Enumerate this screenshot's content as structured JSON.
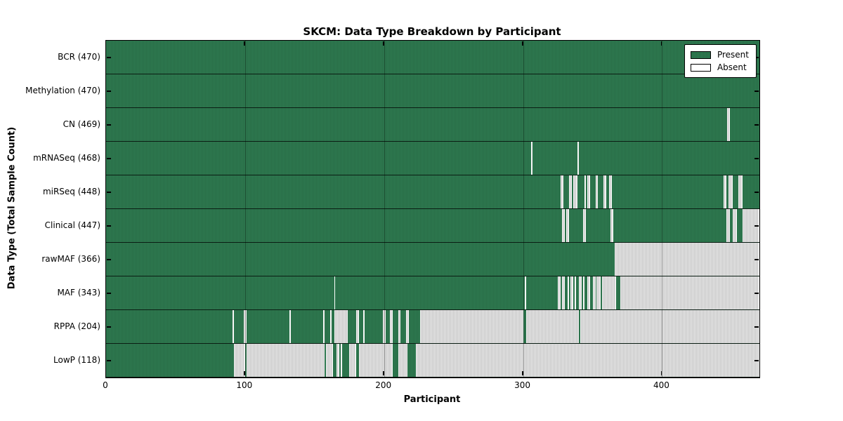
{
  "title": "SKCM: Data Type Breakdown by Participant",
  "colors": {
    "present": "#2f7b51",
    "present_dark": "#215c3c",
    "absent": "#ebebeb",
    "absent_dark": "#c3c3c3"
  },
  "legend": {
    "items": [
      {
        "label": "Present",
        "type": "present"
      },
      {
        "label": "Absent",
        "type": "absent"
      }
    ]
  },
  "chart_data": {
    "type": "heatmap",
    "title": "SKCM: Data Type Breakdown by Participant",
    "xlabel": "Participant",
    "ylabel": "Data Type (Total Sample Count)",
    "x_ticks": [
      0,
      100,
      200,
      300,
      400
    ],
    "x_max": 470,
    "legend_position": "upper right",
    "value_labels": [
      "Present",
      "Absent"
    ],
    "rows": [
      {
        "label": "BCR (470)",
        "name": "BCR",
        "count": 470,
        "absent_ranges": []
      },
      {
        "label": "Methylation (470)",
        "name": "Methylation",
        "count": 470,
        "absent_ranges": []
      },
      {
        "label": "CN (469)",
        "name": "CN",
        "count": 469,
        "absent_ranges": [
          [
            447,
            449
          ]
        ]
      },
      {
        "label": "mRNASeq (468)",
        "name": "mRNASeq",
        "count": 468,
        "absent_ranges": [
          [
            306,
            307
          ],
          [
            339,
            340
          ]
        ]
      },
      {
        "label": "miRSeq (448)",
        "name": "miRSeq",
        "count": 448,
        "absent_ranges": [
          [
            327,
            329
          ],
          [
            333,
            335
          ],
          [
            336,
            339
          ],
          [
            344,
            345
          ],
          [
            346,
            348
          ],
          [
            352,
            354
          ],
          [
            358,
            360
          ],
          [
            362,
            364
          ],
          [
            444,
            446
          ],
          [
            448,
            451
          ],
          [
            455,
            458
          ]
        ]
      },
      {
        "label": "Clinical (447)",
        "name": "Clinical",
        "count": 447,
        "absent_ranges": [
          [
            328,
            330
          ],
          [
            331,
            333
          ],
          [
            343,
            345
          ],
          [
            363,
            365
          ],
          [
            446,
            449
          ],
          [
            451,
            454
          ],
          [
            458,
            470
          ]
        ]
      },
      {
        "label": "rawMAF (366)",
        "name": "rawMAF",
        "count": 366,
        "absent_ranges": [
          [
            366,
            470
          ]
        ]
      },
      {
        "label": "MAF (343)",
        "name": "MAF",
        "count": 343,
        "absent_ranges": [
          [
            164,
            165
          ],
          [
            301,
            302
          ],
          [
            325,
            327
          ],
          [
            328,
            330
          ],
          [
            332,
            333
          ],
          [
            334,
            336
          ],
          [
            337,
            338
          ],
          [
            340,
            342
          ],
          [
            343,
            344
          ],
          [
            346,
            348
          ],
          [
            350,
            352
          ],
          [
            353,
            356
          ],
          [
            357,
            367
          ],
          [
            370,
            470
          ]
        ]
      },
      {
        "label": "RPPA (204)",
        "name": "RPPA",
        "count": 204,
        "absent_ranges": [
          [
            91,
            92
          ],
          [
            99,
            101
          ],
          [
            132,
            133
          ],
          [
            156,
            157
          ],
          [
            161,
            162
          ],
          [
            164,
            174
          ],
          [
            180,
            182
          ],
          [
            185,
            186
          ],
          [
            199,
            201
          ],
          [
            204,
            206
          ],
          [
            210,
            212
          ],
          [
            216,
            218
          ],
          [
            226,
            300
          ],
          [
            302,
            340
          ],
          [
            341,
            470
          ]
        ]
      },
      {
        "label": "LowP (118)",
        "name": "LowP",
        "count": 118,
        "absent_ranges": [
          [
            92,
            100
          ],
          [
            101,
            157
          ],
          [
            158,
            163
          ],
          [
            166,
            168
          ],
          [
            169,
            170
          ],
          [
            175,
            180
          ],
          [
            182,
            206
          ],
          [
            210,
            217
          ],
          [
            223,
            470
          ]
        ]
      }
    ]
  }
}
